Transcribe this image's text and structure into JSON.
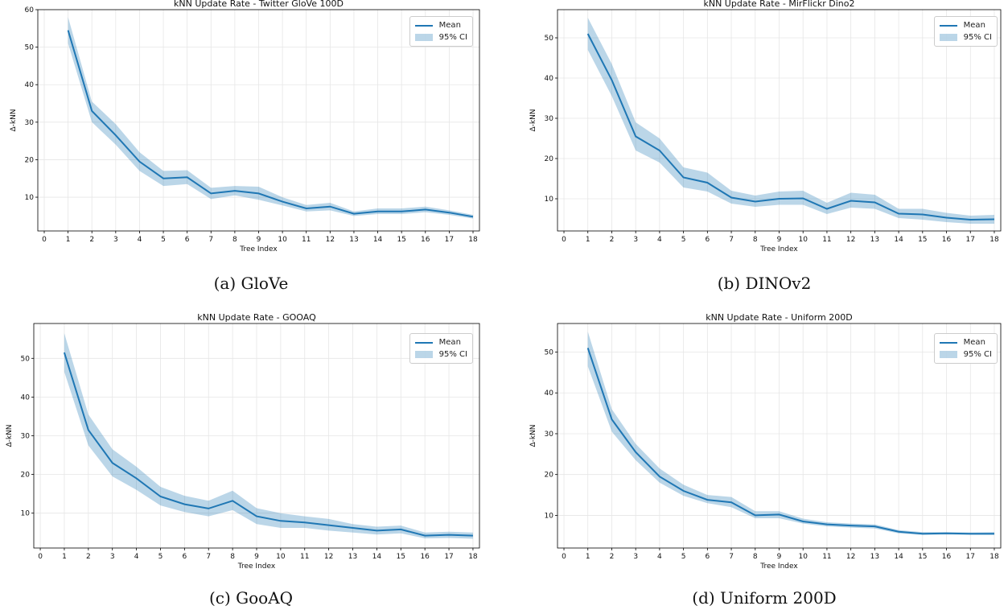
{
  "figure": {
    "colors": {
      "line": "#1f77b4",
      "band": "#1f77b4",
      "grid": "#e6e6e6",
      "axis": "#000000"
    }
  },
  "chart_data": [
    {
      "type": "line",
      "caption": "(a) GloVe",
      "title": "kNN Update Rate - Twitter GloVe 100D",
      "xlabel": "Tree Index",
      "ylabel": "Δ-kNN",
      "xlim": [
        0,
        18
      ],
      "ylim": [
        1,
        60
      ],
      "yticks": [
        10,
        20,
        30,
        40,
        50,
        60
      ],
      "legend": {
        "position": "top-right",
        "entries": [
          "Mean",
          "95% CI"
        ]
      },
      "grid": true,
      "x": [
        1,
        2,
        3,
        4,
        5,
        6,
        7,
        8,
        9,
        10,
        11,
        12,
        13,
        14,
        15,
        16,
        17,
        18
      ],
      "series": [
        {
          "name": "Mean",
          "values": [
            54.5,
            33,
            26.5,
            19.5,
            15,
            15.3,
            11,
            11.7,
            11,
            8.8,
            7,
            7.5,
            5.6,
            6.2,
            6.2,
            6.7,
            5.9,
            4.8
          ]
        },
        {
          "name": "95% CI",
          "lower": [
            51,
            30,
            24,
            17,
            13,
            13.5,
            9.5,
            10.5,
            9.3,
            7.8,
            6.2,
            6.5,
            5,
            5.5,
            5.5,
            6,
            5.3,
            4.3
          ],
          "upper": [
            58,
            35.5,
            29.5,
            22,
            17,
            17.2,
            12.5,
            13,
            12.8,
            10,
            7.9,
            8.5,
            6.2,
            7,
            7,
            7.5,
            6.5,
            5.3
          ]
        }
      ]
    },
    {
      "type": "line",
      "caption": "(b) DINOv2",
      "title": "kNN Update Rate - MirFlickr Dino2",
      "xlabel": "Tree Index",
      "ylabel": "Δ-kNN",
      "xlim": [
        0,
        18
      ],
      "ylim": [
        2,
        57
      ],
      "yticks": [
        10,
        20,
        30,
        40,
        50
      ],
      "legend": {
        "position": "top-right",
        "entries": [
          "Mean",
          "95% CI"
        ]
      },
      "grid": true,
      "x": [
        1,
        2,
        3,
        4,
        5,
        6,
        7,
        8,
        9,
        10,
        11,
        12,
        13,
        14,
        15,
        16,
        17,
        18
      ],
      "series": [
        {
          "name": "Mean",
          "values": [
            51,
            39.5,
            25.5,
            22,
            15.3,
            14,
            10.3,
            9.3,
            10,
            10.1,
            7.5,
            9.5,
            9.1,
            6.3,
            6.1,
            5.3,
            4.8,
            4.9
          ]
        },
        {
          "name": "95% CI",
          "lower": [
            47,
            35.5,
            22,
            19,
            12.8,
            11.8,
            8.8,
            8,
            8.5,
            8.5,
            6.2,
            7.8,
            7.5,
            5.2,
            4.8,
            4.2,
            3.8,
            3.8
          ],
          "upper": [
            55,
            43.5,
            29,
            25,
            17.8,
            16.5,
            12,
            10.8,
            11.8,
            12,
            9,
            11.5,
            11,
            7.5,
            7.5,
            6.5,
            5.8,
            6
          ]
        }
      ]
    },
    {
      "type": "line",
      "caption": "(c) GooAQ",
      "title": "kNN Update Rate - GOOAQ",
      "xlabel": "Tree Index",
      "ylabel": "Δ-kNN",
      "xlim": [
        0,
        18
      ],
      "ylim": [
        1,
        59
      ],
      "yticks": [
        10,
        20,
        30,
        40,
        50
      ],
      "legend": {
        "position": "top-right",
        "entries": [
          "Mean",
          "95% CI"
        ]
      },
      "grid": true,
      "x": [
        1,
        2,
        3,
        4,
        5,
        6,
        7,
        8,
        9,
        10,
        11,
        12,
        13,
        14,
        15,
        16,
        17,
        18
      ],
      "series": [
        {
          "name": "Mean",
          "values": [
            51.5,
            31.5,
            23,
            19,
            14.3,
            12.3,
            11.2,
            13.2,
            9.2,
            8,
            7.6,
            6.9,
            6.2,
            5.5,
            5.8,
            4.2,
            4.4,
            4.2
          ]
        },
        {
          "name": "95% CI",
          "lower": [
            46.5,
            27.5,
            19.5,
            16,
            12,
            10.3,
            9.2,
            10.8,
            7.2,
            6.2,
            6.2,
            5.5,
            5,
            4.5,
            4.8,
            3.5,
            3.6,
            3.4
          ],
          "upper": [
            56.5,
            35.5,
            26.5,
            22,
            16.8,
            14.5,
            13.2,
            15.8,
            11.3,
            10,
            9.2,
            8.5,
            7.2,
            6.5,
            6.8,
            5,
            5.2,
            5
          ]
        }
      ]
    },
    {
      "type": "line",
      "caption": "(d) Uniform 200D",
      "title": "kNN Update Rate - Uniform 200D",
      "xlabel": "Tree Index",
      "ylabel": "Δ-kNN",
      "xlim": [
        0,
        18
      ],
      "ylim": [
        2,
        57
      ],
      "yticks": [
        10,
        20,
        30,
        40,
        50
      ],
      "legend": {
        "position": "top-right",
        "entries": [
          "Mean",
          "95% CI"
        ]
      },
      "grid": true,
      "x": [
        1,
        2,
        3,
        4,
        5,
        6,
        7,
        8,
        9,
        10,
        11,
        12,
        13,
        14,
        15,
        16,
        17,
        18
      ],
      "series": [
        {
          "name": "Mean",
          "values": [
            51,
            33.5,
            25.5,
            19.5,
            16,
            13.8,
            13.2,
            10,
            10.2,
            8.5,
            7.8,
            7.5,
            7.3,
            6,
            5.5,
            5.6,
            5.5,
            5.5
          ]
        },
        {
          "name": "95% CI",
          "lower": [
            46.5,
            30.5,
            23.5,
            18,
            14.8,
            13,
            12,
            9.3,
            9.3,
            8,
            7.3,
            7,
            6.8,
            5.6,
            5.2,
            5.3,
            5.2,
            5.2
          ],
          "upper": [
            55,
            36,
            27.5,
            21.5,
            17.5,
            15,
            14.5,
            11,
            11,
            9.2,
            8.3,
            8,
            7.8,
            6.4,
            5.9,
            5.9,
            5.8,
            5.9
          ]
        }
      ]
    }
  ]
}
